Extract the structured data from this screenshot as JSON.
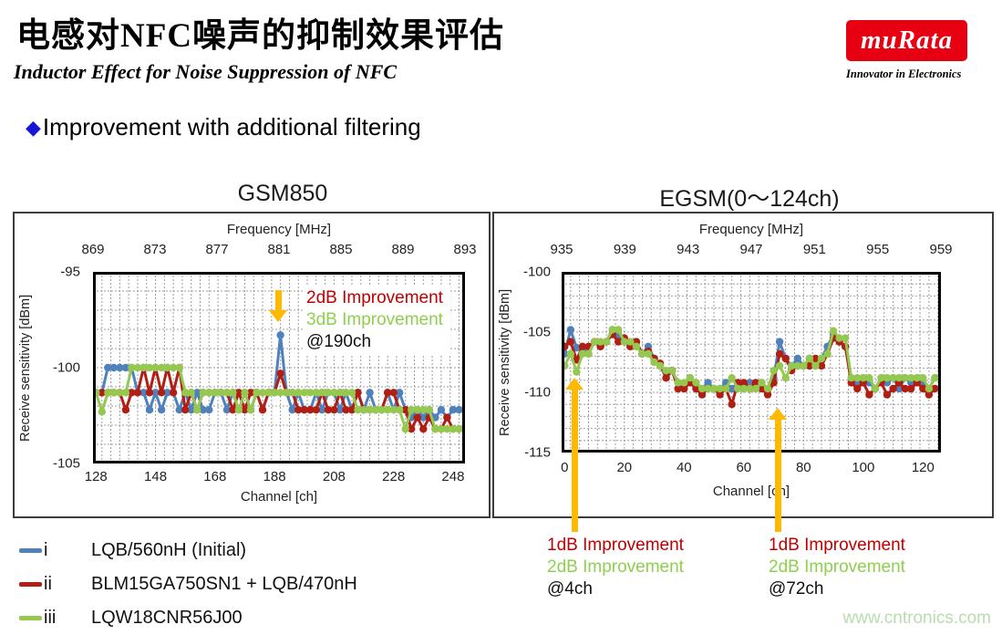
{
  "slide": {
    "title_cn": "电感对NFC噪声的抑制效果评估",
    "subtitle_en": "Inductor Effect for Noise Suppression of NFC",
    "bullet_text": "Improvement with additional filtering",
    "watermark": "www.cntronics.com"
  },
  "logo": {
    "brand": "muRata",
    "tagline": "Innovator in Electronics",
    "bg_color": "#e60012"
  },
  "colors": {
    "annot_red": "#c00000",
    "annot_green": "#8ed04d",
    "arrow_orange": "#ffb900",
    "bullet_blue": "#1616d9"
  },
  "legend": {
    "items": [
      {
        "numeral": "i",
        "label": "LQB/560nH (Initial)",
        "color": "#4f81bd"
      },
      {
        "numeral": "ii",
        "label": "BLM15GA750SN1 + LQB/470nH",
        "color": "#b11e14"
      },
      {
        "numeral": "iii",
        "label": "LQW18CNR56J00",
        "color": "#95c84f"
      }
    ]
  },
  "annotations": {
    "gsm850": {
      "line1": "2dB Improvement",
      "line2": "3dB Improvement",
      "line3": "@190ch"
    },
    "egsm_a": {
      "line1": "1dB Improvement",
      "line2": "2dB Improvement",
      "line3": "@4ch"
    },
    "egsm_b": {
      "line1": "1dB Improvement",
      "line2": "2dB Improvement",
      "line3": "@72ch"
    }
  },
  "chart_data": [
    {
      "type": "line",
      "title": "GSM850",
      "top_axis": {
        "label": "Frequency [MHz]",
        "ticks": [
          869,
          873,
          877,
          881,
          885,
          889,
          893
        ]
      },
      "x_axis": {
        "label": "Channel [ch]",
        "ticks": [
          128,
          148,
          168,
          188,
          208,
          228,
          248
        ]
      },
      "y_axis": {
        "label": "Receive sensitivity [dBm]",
        "ticks": [
          -95,
          -100,
          -105
        ]
      },
      "xlim": [
        127,
        252
      ],
      "ylim": [
        -95,
        -105
      ],
      "grid": {
        "dx": 3,
        "dy": 1
      },
      "x": [
        128,
        130,
        132,
        134,
        136,
        138,
        140,
        142,
        144,
        146,
        148,
        150,
        152,
        154,
        156,
        158,
        160,
        162,
        164,
        166,
        168,
        170,
        172,
        174,
        176,
        178,
        180,
        182,
        184,
        186,
        188,
        190,
        192,
        194,
        196,
        198,
        200,
        202,
        204,
        206,
        208,
        210,
        212,
        214,
        216,
        218,
        220,
        222,
        224,
        226,
        228,
        230,
        232,
        234,
        236,
        238,
        240,
        242,
        244,
        246,
        248,
        250
      ],
      "series": [
        {
          "name": "LQB/560nH (Initial)",
          "color": "#4f81bd",
          "values": [
            -101.3,
            -101.3,
            -100,
            -100,
            -100,
            -100,
            -100,
            -101.3,
            -101.3,
            -102.2,
            -101.3,
            -102.2,
            -101.3,
            -101.3,
            -102.2,
            -101.3,
            -102.2,
            -101.3,
            -102.2,
            -102.2,
            -101.3,
            -101.3,
            -102.2,
            -101.3,
            -102.2,
            -101.3,
            -102.2,
            -101.3,
            -102.2,
            -101.3,
            -101.3,
            -98.3,
            -101.3,
            -102.2,
            -101.3,
            -102.2,
            -102.2,
            -101.3,
            -102.2,
            -101.3,
            -101.3,
            -102.2,
            -101.3,
            -102.2,
            -101.3,
            -102.2,
            -101.3,
            -102.2,
            -102.2,
            -101.3,
            -102.2,
            -101.3,
            -102.2,
            -102.6,
            -102.2,
            -102.6,
            -102.2,
            -102.6,
            -102.2,
            -102.6,
            -102.2,
            -102.2
          ]
        },
        {
          "name": "BLM15GA750SN1 + LQB/470nH",
          "color": "#b11e14",
          "values": [
            -101.3,
            -101.3,
            -101.3,
            -101.3,
            -101.3,
            -102.2,
            -101.3,
            -101.3,
            -100,
            -101.3,
            -100,
            -101.3,
            -100,
            -101.3,
            -100,
            -102.2,
            -101.3,
            -102.2,
            -101.3,
            -101.3,
            -101.3,
            -101.3,
            -101.3,
            -102.2,
            -101.3,
            -102.2,
            -101.3,
            -101.3,
            -102.2,
            -101.3,
            -101.3,
            -100.3,
            -101.3,
            -101.3,
            -102.2,
            -102.2,
            -102.2,
            -102.2,
            -101.3,
            -102.2,
            -102.2,
            -101.3,
            -102.2,
            -102.2,
            -101.3,
            -102.2,
            -102.2,
            -102.2,
            -102.2,
            -101.3,
            -101.3,
            -102.2,
            -102.2,
            -103.2,
            -102.6,
            -103.2,
            -102.6,
            -103.2,
            -103.2,
            -102.6,
            -103.2,
            -103.2
          ]
        },
        {
          "name": "LQW18CNR56J00",
          "color": "#95c84f",
          "values": [
            -101.3,
            -102.3,
            -101.3,
            -101.3,
            -101.3,
            -101.3,
            -100,
            -100,
            -100,
            -100,
            -100,
            -100,
            -100,
            -100,
            -100,
            -101.3,
            -101.3,
            -102.2,
            -101.3,
            -101.3,
            -101.3,
            -101.3,
            -101.3,
            -101.3,
            -102.2,
            -101.3,
            -102.2,
            -101.3,
            -101.3,
            -101.3,
            -101.3,
            -101.3,
            -101.3,
            -101.3,
            -101.3,
            -101.3,
            -101.3,
            -101.3,
            -101.3,
            -101.3,
            -101.3,
            -101.3,
            -101.3,
            -101.3,
            -102.2,
            -102.2,
            -102.2,
            -102.2,
            -102.2,
            -102.2,
            -102.2,
            -102.2,
            -103.2,
            -102.2,
            -102.2,
            -102.2,
            -102.2,
            -103.2,
            -103.2,
            -103.2,
            -103.2,
            -103.2
          ]
        }
      ]
    },
    {
      "type": "line",
      "title": "EGSM(0～124ch)",
      "top_axis": {
        "label": "Frequency [MHz]",
        "ticks": [
          935,
          939,
          943,
          947,
          951,
          955,
          959
        ]
      },
      "x_axis": {
        "label": "Channel [ch]",
        "ticks": [
          0,
          20,
          40,
          60,
          80,
          100,
          120
        ]
      },
      "y_axis": {
        "label": "Receive sensitivity [dBm]",
        "ticks": [
          -100,
          -105,
          -110,
          -115
        ]
      },
      "xlim": [
        -1,
        126
      ],
      "ylim": [
        -100,
        -115
      ],
      "grid": {
        "dx": 3,
        "dy": 1
      },
      "x": [
        0,
        2,
        4,
        6,
        8,
        10,
        12,
        14,
        16,
        18,
        20,
        22,
        24,
        26,
        28,
        30,
        32,
        34,
        36,
        38,
        40,
        42,
        44,
        46,
        48,
        50,
        52,
        54,
        56,
        58,
        60,
        62,
        64,
        66,
        68,
        70,
        72,
        74,
        76,
        78,
        80,
        82,
        84,
        86,
        88,
        90,
        92,
        94,
        96,
        98,
        100,
        102,
        104,
        106,
        108,
        110,
        112,
        114,
        116,
        118,
        120,
        122,
        124
      ],
      "series": [
        {
          "name": "LQB/560nH (Initial)",
          "color": "#4f81bd",
          "values": [
            -106.8,
            -104.8,
            -106.3,
            -106.2,
            -106.8,
            -105.8,
            -106.2,
            -105.8,
            -104.8,
            -105.2,
            -105.8,
            -106.2,
            -105.8,
            -106.8,
            -106.2,
            -107.2,
            -107.8,
            -108.8,
            -108.2,
            -109.2,
            -109.7,
            -108.8,
            -109.2,
            -109.7,
            -109.2,
            -109.7,
            -109.7,
            -109.2,
            -109.7,
            -109.2,
            -109.7,
            -109.2,
            -109.7,
            -109.2,
            -109.7,
            -108.8,
            -105.8,
            -107.2,
            -107.8,
            -107.2,
            -107.8,
            -107.2,
            -107.8,
            -107.2,
            -106.2,
            -105.2,
            -105.8,
            -106.2,
            -108.8,
            -109.2,
            -108.8,
            -109.2,
            -109.7,
            -108.8,
            -109.2,
            -108.8,
            -109.7,
            -108.8,
            -109.2,
            -108.8,
            -109.2,
            -109.7,
            -108.8
          ]
        },
        {
          "name": "BLM15GA750SN1 + LQB/470nH",
          "color": "#b11e14",
          "values": [
            -106.2,
            -105.8,
            -107.3,
            -106.2,
            -106.2,
            -105.8,
            -106.2,
            -105.8,
            -105.2,
            -105.8,
            -105.5,
            -106.2,
            -105.8,
            -106.8,
            -106.6,
            -107.2,
            -107.6,
            -108.8,
            -108.2,
            -109.7,
            -109.7,
            -109.2,
            -109.7,
            -110.2,
            -109.7,
            -109.7,
            -110.2,
            -109.7,
            -111.0,
            -109.2,
            -109.2,
            -109.7,
            -109.2,
            -109.7,
            -110.2,
            -109.2,
            -106.8,
            -107.2,
            -108.2,
            -107.8,
            -107.8,
            -107.8,
            -107.2,
            -107.8,
            -106.8,
            -105.5,
            -105.8,
            -106.2,
            -109.2,
            -109.7,
            -109.2,
            -110.2,
            -109.7,
            -109.2,
            -110.2,
            -109.7,
            -109.2,
            -109.7,
            -109.7,
            -109.2,
            -109.7,
            -110.2,
            -109.7
          ]
        },
        {
          "name": "LQW18CNR56J00",
          "color": "#95c84f",
          "values": [
            -107.8,
            -106.8,
            -108.3,
            -106.8,
            -106.8,
            -105.8,
            -105.8,
            -105.8,
            -104.8,
            -104.8,
            -105.8,
            -105.8,
            -106.2,
            -106.8,
            -106.8,
            -107.5,
            -107.8,
            -108.2,
            -108.2,
            -109.2,
            -109.2,
            -108.8,
            -109.2,
            -109.7,
            -109.7,
            -109.7,
            -109.7,
            -109.7,
            -108.8,
            -109.7,
            -109.7,
            -109.7,
            -109.7,
            -109.2,
            -109.7,
            -108.2,
            -107.8,
            -108.8,
            -107.8,
            -107.8,
            -107.8,
            -107.2,
            -107.8,
            -107.2,
            -106.8,
            -104.9,
            -105.5,
            -105.5,
            -108.8,
            -108.8,
            -108.8,
            -108.8,
            -109.7,
            -108.8,
            -108.8,
            -108.8,
            -108.8,
            -108.8,
            -108.8,
            -108.8,
            -108.8,
            -109.7,
            -108.8
          ]
        }
      ]
    }
  ]
}
